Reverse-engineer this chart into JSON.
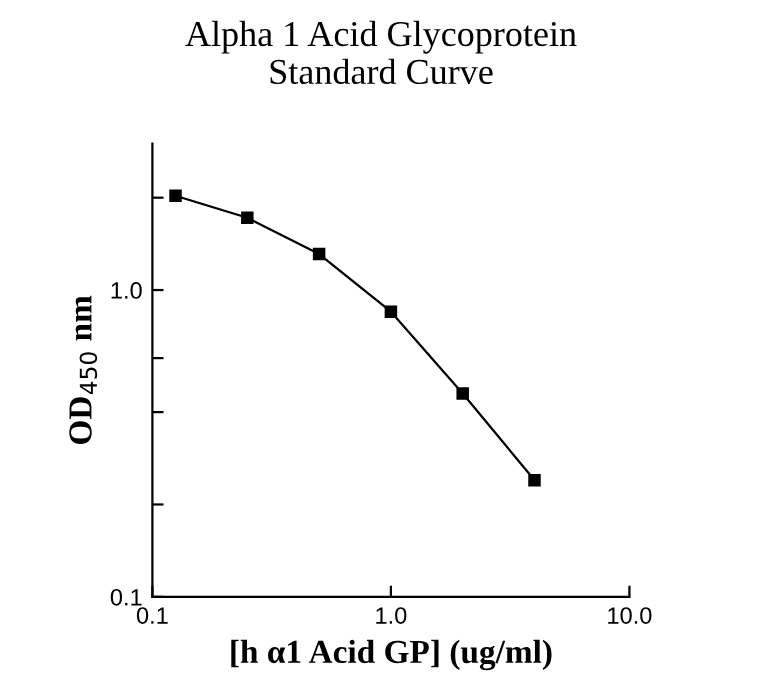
{
  "chart_data": {
    "type": "line",
    "title": "Alpha 1 Acid Glycoprotein\nStandard Curve",
    "xlabel": "[h α1 Acid GP] (ug/ml)",
    "ylabel": "OD$_{450}$ nm",
    "log": "xy",
    "x": [
      0.125,
      0.25,
      0.5,
      1,
      2,
      4
    ],
    "series": [
      {
        "color": "#000000",
        "values": [
          2.03,
          1.72,
          1.31,
          0.85,
          0.46,
          0.24
        ]
      }
    ],
    "xlim": [
      0.1,
      10
    ],
    "xticks": [
      0.1,
      {
        "value": 1,
        "label": "1.0"
      },
      {
        "value": 10,
        "label": "10.0"
      }
    ],
    "ylim": [
      0.1,
      3
    ],
    "yticks": [
      0.1,
      {
        "value": 0.2,
        "label": null
      },
      {
        "value": 0.4,
        "label": null
      },
      {
        "value": 0.6,
        "label": null
      },
      {
        "value": 1,
        "label": "1.0"
      },
      {
        "value": 2,
        "label": null
      }
    ],
    "marker": "square",
    "line_style": "solid",
    "grid": false,
    "legend": false
  }
}
